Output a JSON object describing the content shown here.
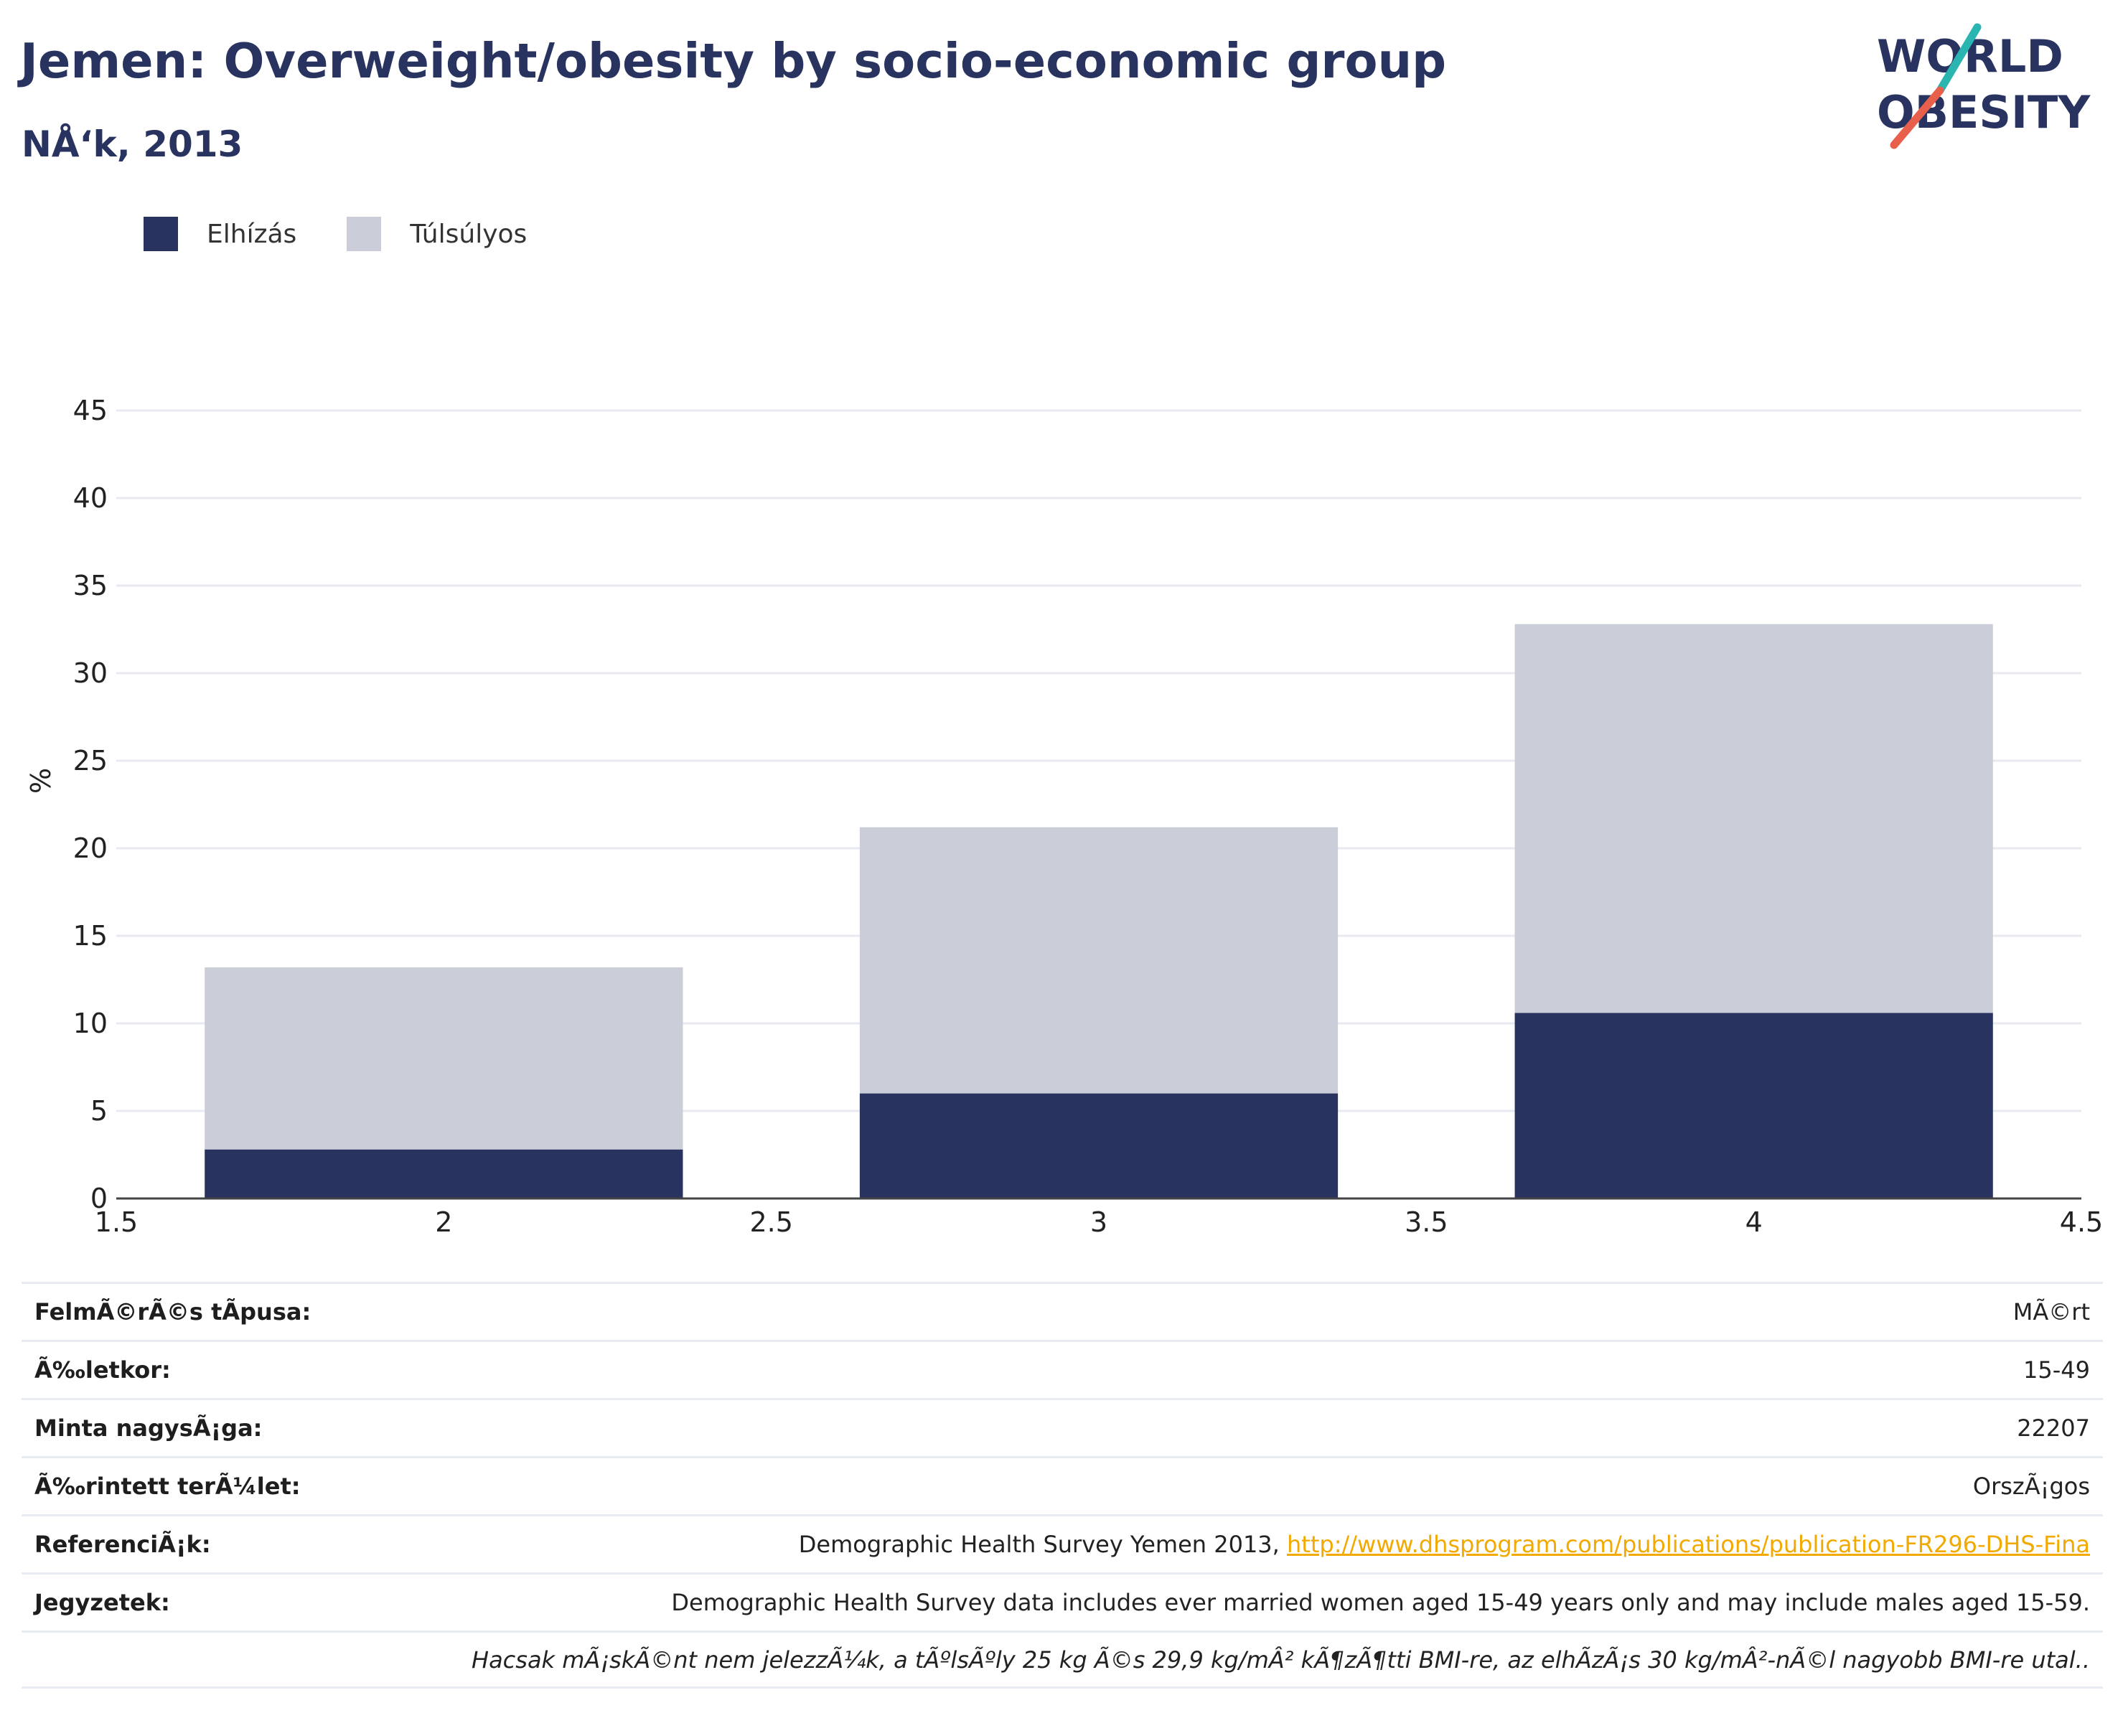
{
  "title": "Jemen: Overweight/obesity by socio-economic group",
  "subtitle": "NÅ‘k, 2013",
  "logo": {
    "line1": "WORLD",
    "line2": "OBESITY"
  },
  "colors": {
    "obesity": "#283360",
    "overweight": "#cbcdd8",
    "title": "#283360",
    "link": "#f2a900"
  },
  "chart_data": {
    "type": "bar",
    "stacked": true,
    "categories": [
      2,
      3,
      4
    ],
    "series": [
      {
        "name": "Elhízás",
        "values": [
          2.8,
          6.0,
          10.6
        ],
        "color": "#283360"
      },
      {
        "name": "Túlsúlyos",
        "values": [
          10.4,
          15.2,
          22.2
        ],
        "color": "#cbcdd8"
      }
    ],
    "ylabel": "%",
    "xlim": [
      1.5,
      4.5
    ],
    "ylim": [
      0,
      45
    ],
    "xticks": [
      "1.5",
      "2",
      "2.5",
      "3",
      "3.5",
      "4",
      "4.5"
    ],
    "yticks": [
      "0",
      "5",
      "10",
      "15",
      "20",
      "25",
      "30",
      "35",
      "40",
      "45"
    ],
    "grid": true,
    "legend_position": "top-left"
  },
  "info": {
    "survey_type": {
      "label": "FelmÃ©rÃ©s tÃpusa:",
      "value": "MÃ©rt"
    },
    "age": {
      "label": "Ã‰letkor:",
      "value": "15-49"
    },
    "sample_size": {
      "label": "Minta nagysÃ¡ga:",
      "value": "22207"
    },
    "area": {
      "label": "Ã‰rintett terÃ¼let:",
      "value": "OrszÃ¡gos"
    },
    "references": {
      "label": "ReferenciÃ¡k:",
      "text": "Demographic Health Survey Yemen 2013, ",
      "link": "http://www.dhsprogram.com/publications/publication-FR296-DHS-Fina"
    },
    "notes": {
      "label": "Jegyzetek:",
      "value": "Demographic Health Survey data includes ever married women aged 15-49 years only and may include males aged 15-59."
    },
    "footnote": "Hacsak mÃ¡skÃ©nt nem jelezzÃ¼k, a tÃºlsÃºly 25 kg Ã©s 29,9 kg/mÂ² kÃ¶zÃ¶tti BMI-re, az elhÃzÃ¡s 30 kg/mÂ²-nÃ©l nagyobb BMI-re utal.."
  }
}
